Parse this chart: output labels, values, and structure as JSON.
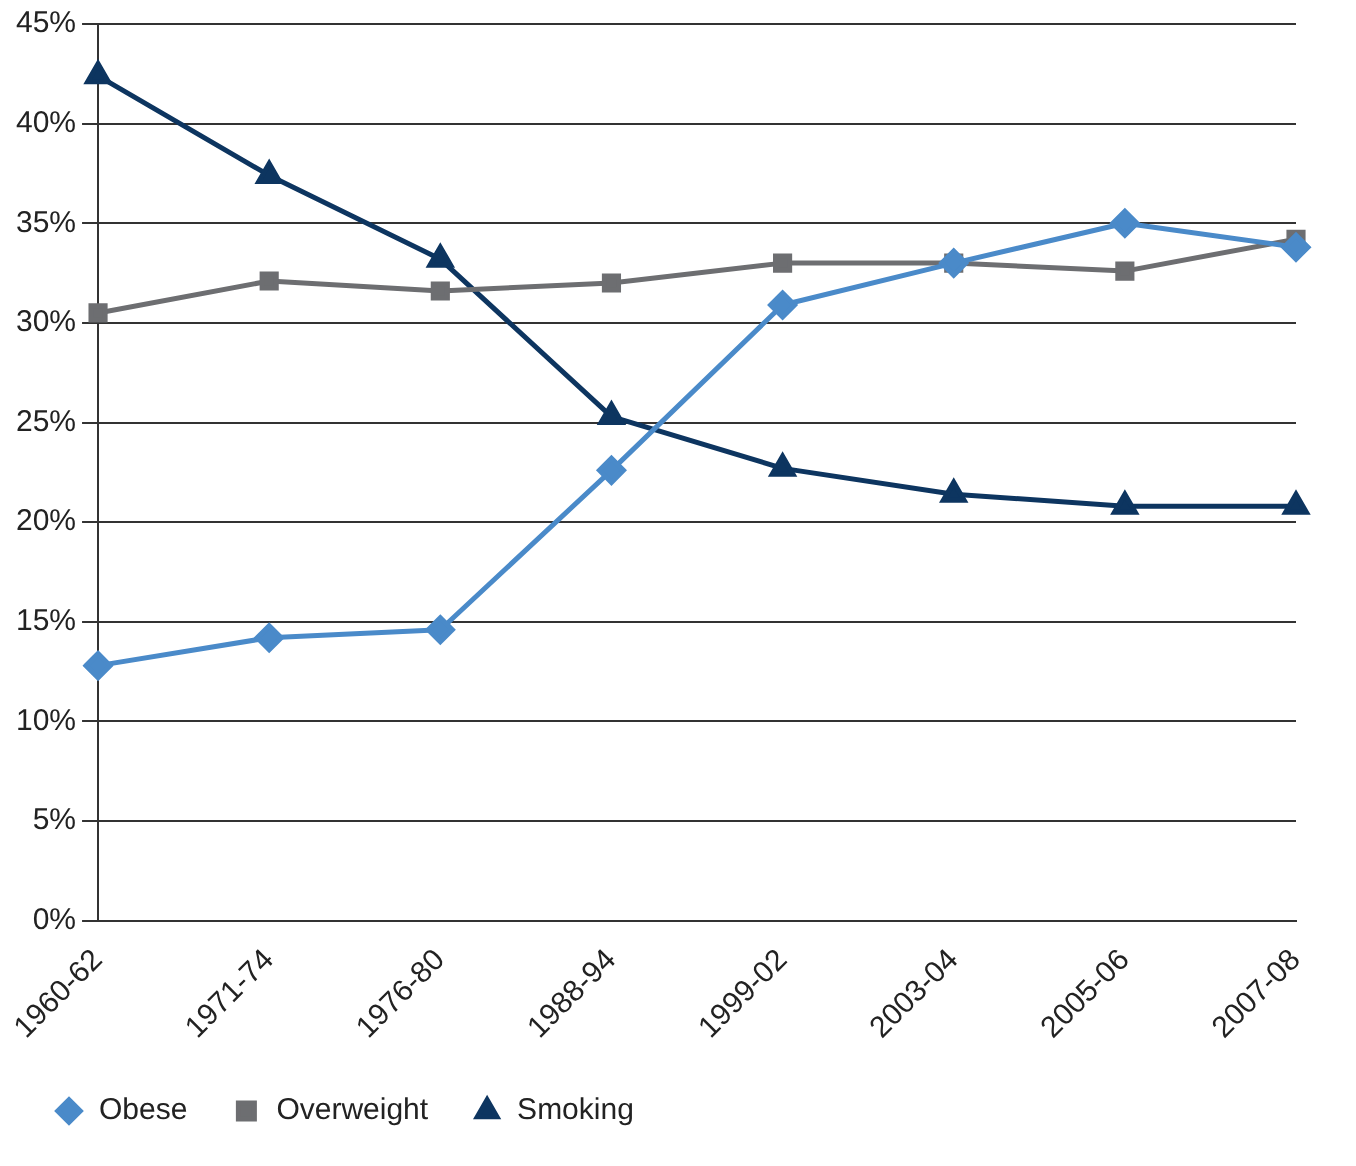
{
  "chart_data": {
    "type": "line",
    "categories": [
      "1960-62",
      "1971-74",
      "1976-80",
      "1988-94",
      "1999-02",
      "2003-04",
      "2005-06",
      "2007-08"
    ],
    "series": [
      {
        "name": "Obese",
        "color": "#4a8ac9",
        "marker": "diamond",
        "values": [
          12.8,
          14.2,
          14.6,
          22.6,
          30.9,
          33.0,
          35.0,
          33.8
        ]
      },
      {
        "name": "Overweight",
        "color": "#6d6e71",
        "marker": "square",
        "values": [
          30.5,
          32.1,
          31.6,
          32.0,
          33.0,
          33.0,
          32.6,
          34.2
        ]
      },
      {
        "name": "Smoking",
        "color": "#0d3560",
        "marker": "triangle",
        "values": [
          42.4,
          37.4,
          33.2,
          25.3,
          22.7,
          21.4,
          20.8,
          20.8
        ]
      }
    ],
    "ylim": [
      0,
      45
    ],
    "yticks": [
      {
        "value": 0,
        "label": "0%"
      },
      {
        "value": 5,
        "label": "5%"
      },
      {
        "value": 10,
        "label": "10%"
      },
      {
        "value": 15,
        "label": "15%"
      },
      {
        "value": 20,
        "label": "20%"
      },
      {
        "value": 25,
        "label": "25%"
      },
      {
        "value": 30,
        "label": "30%"
      },
      {
        "value": 35,
        "label": "35%"
      },
      {
        "value": 40,
        "label": "40%"
      },
      {
        "value": 45,
        "label": "45%"
      }
    ],
    "grid": "y",
    "legend": "bottom left",
    "line_style": "solid"
  }
}
